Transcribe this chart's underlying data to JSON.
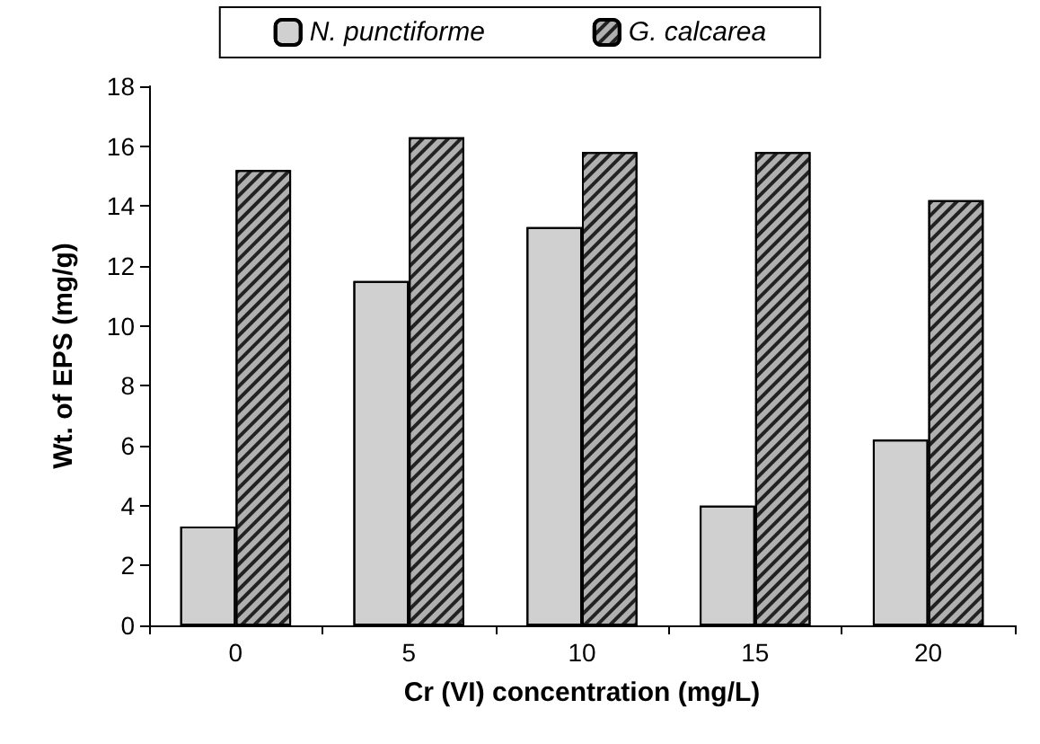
{
  "chart_data": {
    "type": "bar",
    "xlabel": "Cr (VI) concentration (mg/L)",
    "ylabel": "Wt. of EPS (mg/g)",
    "categories": [
      "0",
      "5",
      "10",
      "15",
      "20"
    ],
    "series": [
      {
        "name": "N. punctiforme",
        "color": "#d0d0d0",
        "values": [
          3.3,
          11.5,
          13.3,
          4.0,
          6.2
        ]
      },
      {
        "name": "G. calcarea",
        "color": "#b0b0b0",
        "values": [
          15.2,
          16.3,
          15.8,
          15.8,
          14.2
        ]
      }
    ],
    "ylim": [
      0,
      18
    ],
    "yticks": [
      0,
      2,
      4,
      6,
      8,
      10,
      12,
      14,
      16,
      18
    ],
    "grid": false,
    "legend": "top"
  }
}
